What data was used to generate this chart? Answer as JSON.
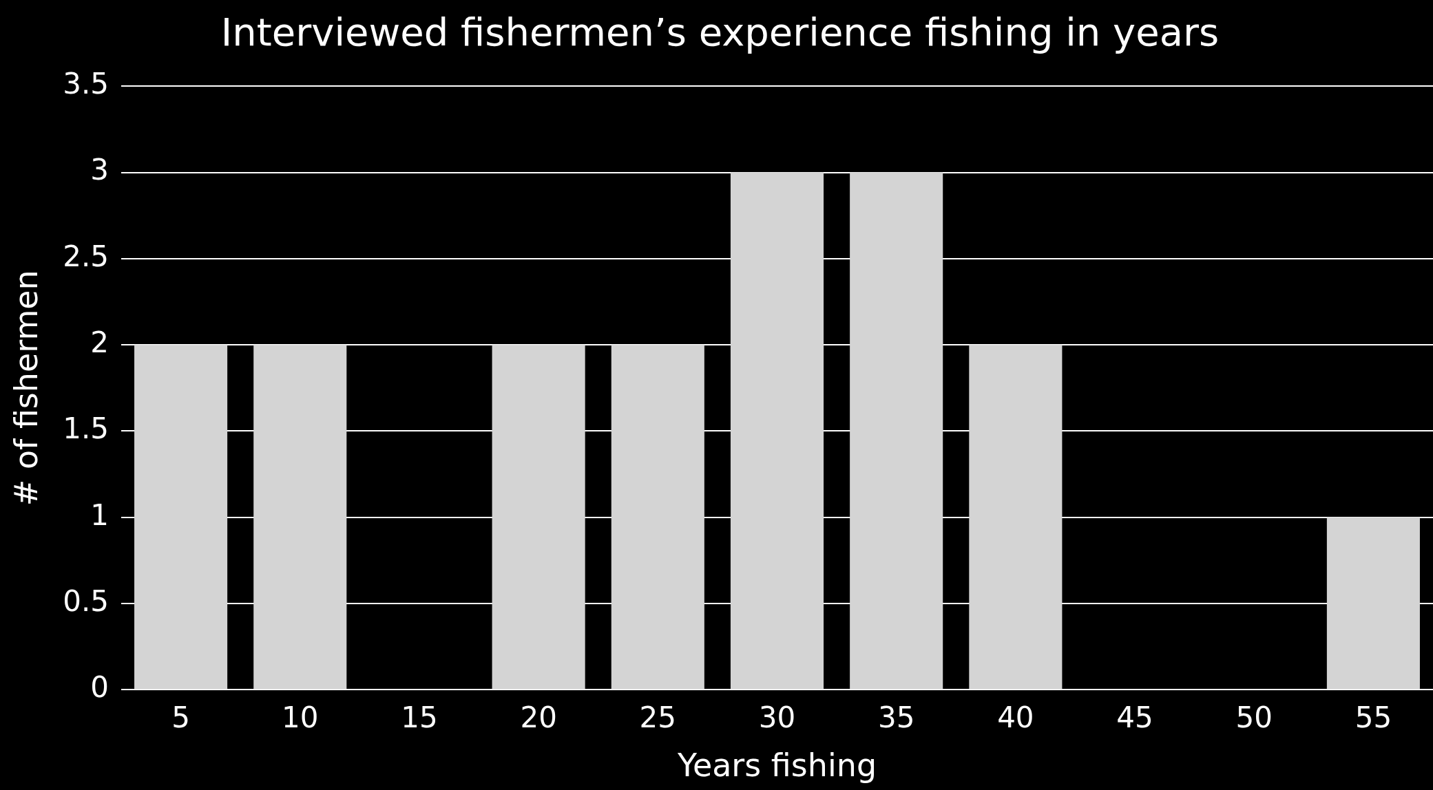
{
  "chart_data": {
    "type": "bar",
    "title": "Interviewed fishermen’s experience fishing in years",
    "xlabel": "Years fishing",
    "ylabel": "# of fishermen",
    "categories": [
      "5",
      "10",
      "15",
      "20",
      "25",
      "30",
      "35",
      "40",
      "45",
      "50",
      "55"
    ],
    "values": [
      2,
      2,
      0,
      2,
      2,
      3,
      3,
      2,
      0,
      0,
      1
    ],
    "color": "#d4d4d4",
    "ylim": [
      0,
      3.5
    ],
    "yticks": [
      0,
      0.5,
      1,
      1.5,
      2,
      2.5,
      3,
      3.5
    ],
    "grid": "y",
    "legend": false
  }
}
